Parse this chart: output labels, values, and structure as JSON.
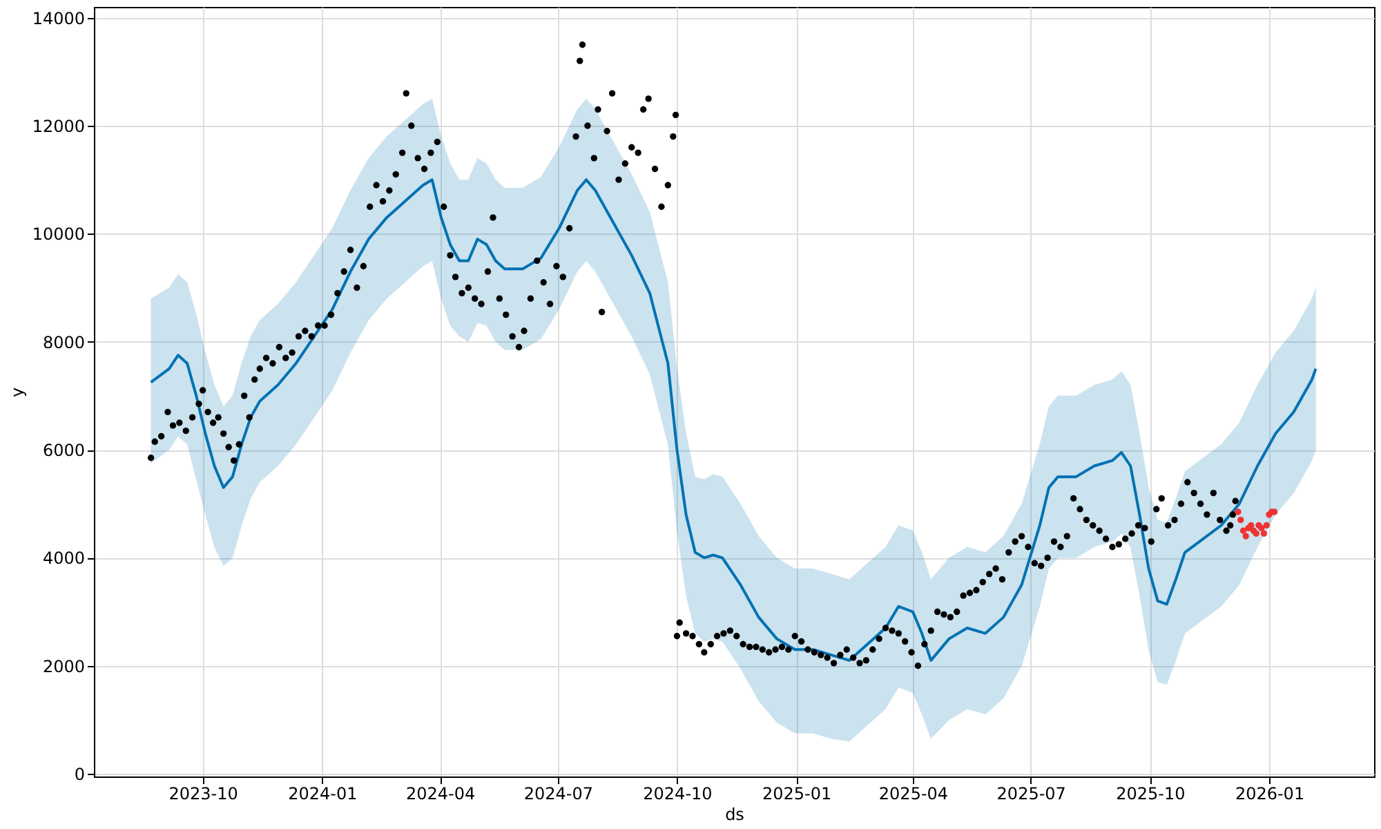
{
  "chart_data": {
    "type": "line",
    "xlabel": "ds",
    "ylabel": "y",
    "grid": true,
    "xlim": [
      "2023-07-09",
      "2026-03-23"
    ],
    "ylim": [
      -50,
      14200
    ],
    "xticks": [
      "2023-10",
      "2024-01",
      "2024-04",
      "2024-07",
      "2024-10",
      "2025-01",
      "2025-04",
      "2025-07",
      "2025-10",
      "2026-01"
    ],
    "yticks": [
      0,
      2000,
      4000,
      6000,
      8000,
      10000,
      12000,
      14000
    ],
    "series": [
      {
        "color": "#0072b2",
        "line_style": "solid",
        "marker": "none",
        "x": [
          "2023-08-22",
          "2023-09-05",
          "2023-09-12",
          "2023-09-19",
          "2023-09-26",
          "2023-10-03",
          "2023-10-10",
          "2023-10-17",
          "2023-10-24",
          "2023-10-31",
          "2023-11-07",
          "2023-11-14",
          "2023-11-28",
          "2023-12-12",
          "2023-12-26",
          "2024-01-09",
          "2024-01-23",
          "2024-02-06",
          "2024-02-20",
          "2024-03-05",
          "2024-03-19",
          "2024-03-26",
          "2024-04-02",
          "2024-04-09",
          "2024-04-16",
          "2024-04-23",
          "2024-04-30",
          "2024-05-07",
          "2024-05-14",
          "2024-05-21",
          "2024-06-04",
          "2024-06-18",
          "2024-07-02",
          "2024-07-16",
          "2024-07-23",
          "2024-07-30",
          "2024-08-13",
          "2024-08-27",
          "2024-09-10",
          "2024-09-24",
          "2024-10-01",
          "2024-10-08",
          "2024-10-15",
          "2024-10-22",
          "2024-10-29",
          "2024-11-05",
          "2024-11-19",
          "2024-12-03",
          "2024-12-17",
          "2024-12-31",
          "2025-01-14",
          "2025-01-28",
          "2025-02-11",
          "2025-02-25",
          "2025-03-11",
          "2025-03-21",
          "2025-04-01",
          "2025-04-08",
          "2025-04-15",
          "2025-04-29",
          "2025-05-13",
          "2025-05-27",
          "2025-06-10",
          "2025-06-24",
          "2025-07-08",
          "2025-07-15",
          "2025-07-22",
          "2025-08-05",
          "2025-08-19",
          "2025-09-02",
          "2025-09-09",
          "2025-09-16",
          "2025-09-23",
          "2025-09-30",
          "2025-10-07",
          "2025-10-14",
          "2025-10-21",
          "2025-10-28",
          "2025-11-11",
          "2025-11-25",
          "2025-12-09",
          "2025-12-23",
          "2026-01-06",
          "2026-01-20",
          "2026-02-03",
          "2026-02-06"
        ],
        "values": [
          7250,
          7500,
          7750,
          7600,
          7000,
          6300,
          5700,
          5300,
          5500,
          6100,
          6600,
          6900,
          7200,
          7600,
          8100,
          8600,
          9300,
          9900,
          10300,
          10600,
          10900,
          11000,
          10300,
          9800,
          9500,
          9500,
          9900,
          9800,
          9500,
          9350,
          9350,
          9550,
          10100,
          10800,
          11000,
          10800,
          10200,
          9600,
          8900,
          7600,
          6000,
          4800,
          4100,
          4000,
          4050,
          4000,
          3500,
          2900,
          2500,
          2300,
          2300,
          2200,
          2100,
          2400,
          2700,
          3100,
          3000,
          2600,
          2100,
          2500,
          2700,
          2600,
          2900,
          3500,
          4600,
          5300,
          5500,
          5500,
          5700,
          5800,
          5950,
          5700,
          4800,
          3800,
          3200,
          3140,
          3600,
          4100,
          4350,
          4600,
          5000,
          5700,
          6300,
          6700,
          7300,
          7500
        ],
        "lower": [
          5750,
          6000,
          6250,
          6100,
          5450,
          4800,
          4200,
          3850,
          4000,
          4600,
          5100,
          5400,
          5700,
          6100,
          6600,
          7100,
          7800,
          8400,
          8800,
          9100,
          9400,
          9500,
          8800,
          8300,
          8100,
          8000,
          8350,
          8300,
          8000,
          7850,
          7850,
          8050,
          8600,
          9300,
          9500,
          9300,
          8700,
          8100,
          7400,
          6100,
          4500,
          3300,
          2600,
          2450,
          2500,
          2450,
          1950,
          1350,
          950,
          750,
          750,
          650,
          600,
          900,
          1200,
          1600,
          1500,
          1100,
          650,
          1000,
          1200,
          1100,
          1400,
          2000,
          3100,
          3800,
          4000,
          4000,
          4200,
          4300,
          4450,
          4200,
          3300,
          2300,
          1700,
          1650,
          2100,
          2600,
          2850,
          3100,
          3500,
          4200,
          4800,
          5200,
          5800,
          6000
        ],
        "upper": [
          8800,
          9000,
          9250,
          9100,
          8500,
          7800,
          7200,
          6800,
          7000,
          7600,
          8100,
          8400,
          8700,
          9100,
          9600,
          10100,
          10800,
          11400,
          11800,
          12100,
          12400,
          12500,
          11800,
          11300,
          11000,
          11000,
          11400,
          11300,
          11000,
          10850,
          10850,
          11050,
          11600,
          12300,
          12500,
          12300,
          11700,
          11100,
          10400,
          9100,
          7500,
          6300,
          5500,
          5450,
          5550,
          5500,
          5000,
          4400,
          4000,
          3800,
          3800,
          3700,
          3600,
          3900,
          4200,
          4600,
          4500,
          4100,
          3600,
          4000,
          4200,
          4100,
          4400,
          5000,
          6100,
          6800,
          7000,
          7000,
          7200,
          7300,
          7450,
          7200,
          6300,
          5300,
          4700,
          4650,
          5100,
          5600,
          5850,
          6100,
          6500,
          7200,
          7800,
          8200,
          8800,
          9000
        ]
      },
      {
        "type": "scatter",
        "color": "#000000",
        "marker": "circle",
        "x": [
          "2023-08-22",
          "2023-08-25",
          "2023-08-30",
          "2023-09-04",
          "2023-09-08",
          "2023-09-13",
          "2023-09-18",
          "2023-09-23",
          "2023-09-28",
          "2023-10-01",
          "2023-10-05",
          "2023-10-09",
          "2023-10-13",
          "2023-10-17",
          "2023-10-21",
          "2023-10-25",
          "2023-10-29",
          "2023-11-02",
          "2023-11-06",
          "2023-11-10",
          "2023-11-14",
          "2023-11-19",
          "2023-11-24",
          "2023-11-29",
          "2023-12-04",
          "2023-12-09",
          "2023-12-14",
          "2023-12-19",
          "2023-12-24",
          "2023-12-29",
          "2024-01-03",
          "2024-01-08",
          "2024-01-13",
          "2024-01-18",
          "2024-01-23",
          "2024-01-28",
          "2024-02-02",
          "2024-02-07",
          "2024-02-12",
          "2024-02-17",
          "2024-02-22",
          "2024-02-27",
          "2024-03-03",
          "2024-03-06",
          "2024-03-10",
          "2024-03-15",
          "2024-03-20",
          "2024-03-25",
          "2024-03-30",
          "2024-04-04",
          "2024-04-09",
          "2024-04-13",
          "2024-04-18",
          "2024-04-23",
          "2024-04-28",
          "2024-05-03",
          "2024-05-08",
          "2024-05-12",
          "2024-05-17",
          "2024-05-22",
          "2024-05-27",
          "2024-06-01",
          "2024-06-05",
          "2024-06-10",
          "2024-06-15",
          "2024-06-20",
          "2024-06-25",
          "2024-06-30",
          "2024-07-05",
          "2024-07-10",
          "2024-07-15",
          "2024-07-18",
          "2024-07-20",
          "2024-07-24",
          "2024-07-29",
          "2024-08-01",
          "2024-08-04",
          "2024-08-08",
          "2024-08-12",
          "2024-08-17",
          "2024-08-22",
          "2024-08-27",
          "2024-09-01",
          "2024-09-05",
          "2024-09-09",
          "2024-09-14",
          "2024-09-19",
          "2024-09-24",
          "2024-09-28",
          "2024-09-30",
          "2024-10-01",
          "2024-10-03",
          "2024-10-08",
          "2024-10-13",
          "2024-10-18",
          "2024-10-22",
          "2024-10-27",
          "2024-11-01",
          "2024-11-06",
          "2024-11-11",
          "2024-11-16",
          "2024-11-21",
          "2024-11-26",
          "2024-12-01",
          "2024-12-06",
          "2024-12-11",
          "2024-12-16",
          "2024-12-21",
          "2024-12-26",
          "2024-12-31",
          "2025-01-05",
          "2025-01-10",
          "2025-01-15",
          "2025-01-20",
          "2025-01-25",
          "2025-01-30",
          "2025-02-04",
          "2025-02-09",
          "2025-02-14",
          "2025-02-19",
          "2025-02-24",
          "2025-03-01",
          "2025-03-06",
          "2025-03-11",
          "2025-03-16",
          "2025-03-21",
          "2025-03-26",
          "2025-03-31",
          "2025-04-05",
          "2025-04-10",
          "2025-04-15",
          "2025-04-20",
          "2025-04-25",
          "2025-04-30",
          "2025-05-05",
          "2025-05-10",
          "2025-05-15",
          "2025-05-20",
          "2025-05-25",
          "2025-05-30",
          "2025-06-04",
          "2025-06-09",
          "2025-06-14",
          "2025-06-19",
          "2025-06-24",
          "2025-06-29",
          "2025-07-04",
          "2025-07-09",
          "2025-07-14",
          "2025-07-19",
          "2025-07-24",
          "2025-07-29",
          "2025-08-03",
          "2025-08-08",
          "2025-08-13",
          "2025-08-18",
          "2025-08-23",
          "2025-08-28",
          "2025-09-02",
          "2025-09-07",
          "2025-09-12",
          "2025-09-17",
          "2025-09-22",
          "2025-09-27",
          "2025-10-02",
          "2025-10-06",
          "2025-10-10",
          "2025-10-15",
          "2025-10-20",
          "2025-10-25",
          "2025-10-30",
          "2025-11-04",
          "2025-11-09",
          "2025-11-14",
          "2025-11-19",
          "2025-11-24",
          "2025-11-29",
          "2025-12-02",
          "2025-12-04",
          "2025-12-06"
        ],
        "values": [
          5850,
          6150,
          6250,
          6700,
          6450,
          6500,
          6350,
          6600,
          6850,
          7100,
          6700,
          6500,
          6600,
          6300,
          6050,
          5800,
          6100,
          7000,
          6600,
          7300,
          7500,
          7700,
          7600,
          7900,
          7700,
          7800,
          8100,
          8200,
          8100,
          8300,
          8300,
          8500,
          8900,
          9300,
          9700,
          9000,
          9400,
          10500,
          10900,
          10600,
          10800,
          11100,
          11500,
          12600,
          12000,
          11400,
          11200,
          11500,
          11700,
          10500,
          9600,
          9200,
          8900,
          9000,
          8800,
          8700,
          9300,
          10300,
          8800,
          8500,
          8100,
          7900,
          8200,
          8800,
          9500,
          9100,
          8700,
          9400,
          9200,
          10100,
          11800,
          13200,
          13500,
          12000,
          11400,
          12300,
          8550,
          11900,
          12600,
          11000,
          11300,
          11600,
          11500,
          12300,
          12500,
          11200,
          10500,
          10900,
          11800,
          12200,
          2550,
          2800,
          2600,
          2550,
          2400,
          2250,
          2400,
          2550,
          2600,
          2650,
          2550,
          2400,
          2350,
          2350,
          2300,
          2250,
          2300,
          2350,
          2300,
          2550,
          2450,
          2300,
          2250,
          2200,
          2150,
          2050,
          2200,
          2300,
          2150,
          2050,
          2100,
          2300,
          2500,
          2700,
          2650,
          2600,
          2450,
          2250,
          2000,
          2400,
          2650,
          3000,
          2950,
          2900,
          3000,
          3300,
          3350,
          3400,
          3550,
          3700,
          3800,
          3600,
          4100,
          4300,
          4400,
          4200,
          3900,
          3850,
          4000,
          4300,
          4200,
          4400,
          5100,
          4900,
          4700,
          4600,
          4500,
          4350,
          4200,
          4250,
          4350,
          4450,
          4600,
          4550,
          4300,
          4900,
          5100,
          4600,
          4700,
          5000,
          5400,
          5200,
          5000,
          4800,
          5200,
          4700,
          4500,
          4600,
          4800,
          5050
        ]
      },
      {
        "type": "scatter",
        "color": "#ee3333",
        "marker": "circle",
        "x": [
          "2025-12-08",
          "2025-12-10",
          "2025-12-12",
          "2025-12-14",
          "2025-12-16",
          "2025-12-18",
          "2025-12-20",
          "2025-12-22",
          "2025-12-24",
          "2025-12-26",
          "2025-12-28",
          "2025-12-30",
          "2026-01-01",
          "2026-01-03",
          "2026-01-05"
        ],
        "values": [
          4850,
          4700,
          4500,
          4400,
          4550,
          4600,
          4500,
          4450,
          4600,
          4550,
          4450,
          4600,
          4800,
          4850,
          4850
        ]
      }
    ]
  }
}
